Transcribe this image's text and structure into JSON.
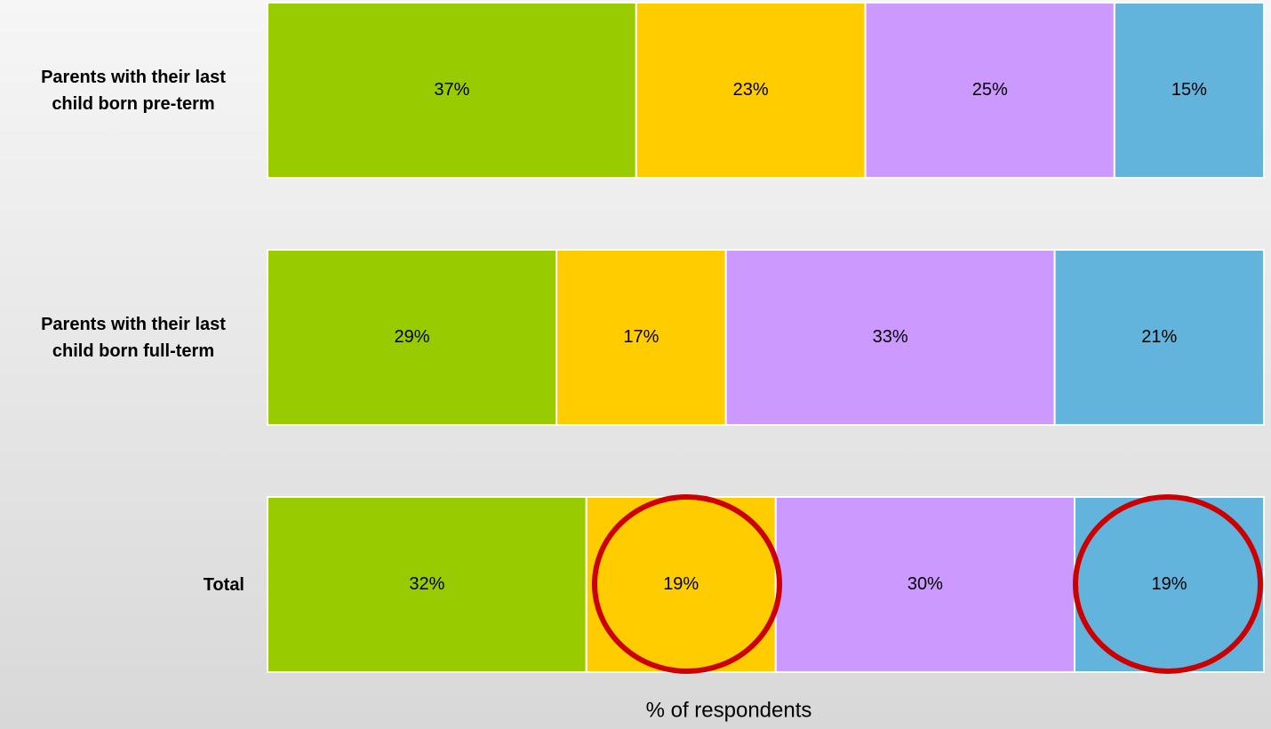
{
  "chart_data": {
    "type": "stacked_bar_horizontal",
    "categories": [
      "Parents with their last child born pre-term",
      "Parents with their last child born full-term",
      "Total"
    ],
    "series": [
      {
        "color": "#99cc00",
        "values": [
          37,
          29,
          32
        ],
        "value_labels": [
          "37%",
          "29%",
          "32%"
        ]
      },
      {
        "color": "#ffcc00",
        "values": [
          23,
          17,
          19
        ],
        "value_labels": [
          "23%",
          "17%",
          "19%"
        ]
      },
      {
        "color": "#cc99ff",
        "values": [
          25,
          33,
          30
        ],
        "value_labels": [
          "25%",
          "33%",
          "30%"
        ]
      },
      {
        "color": "#63b4dc",
        "values": [
          15,
          21,
          19
        ],
        "value_labels": [
          "15%",
          "21%",
          "19%"
        ]
      }
    ],
    "xlim": [
      0,
      100
    ],
    "xlabel": "% of respondents"
  }
}
